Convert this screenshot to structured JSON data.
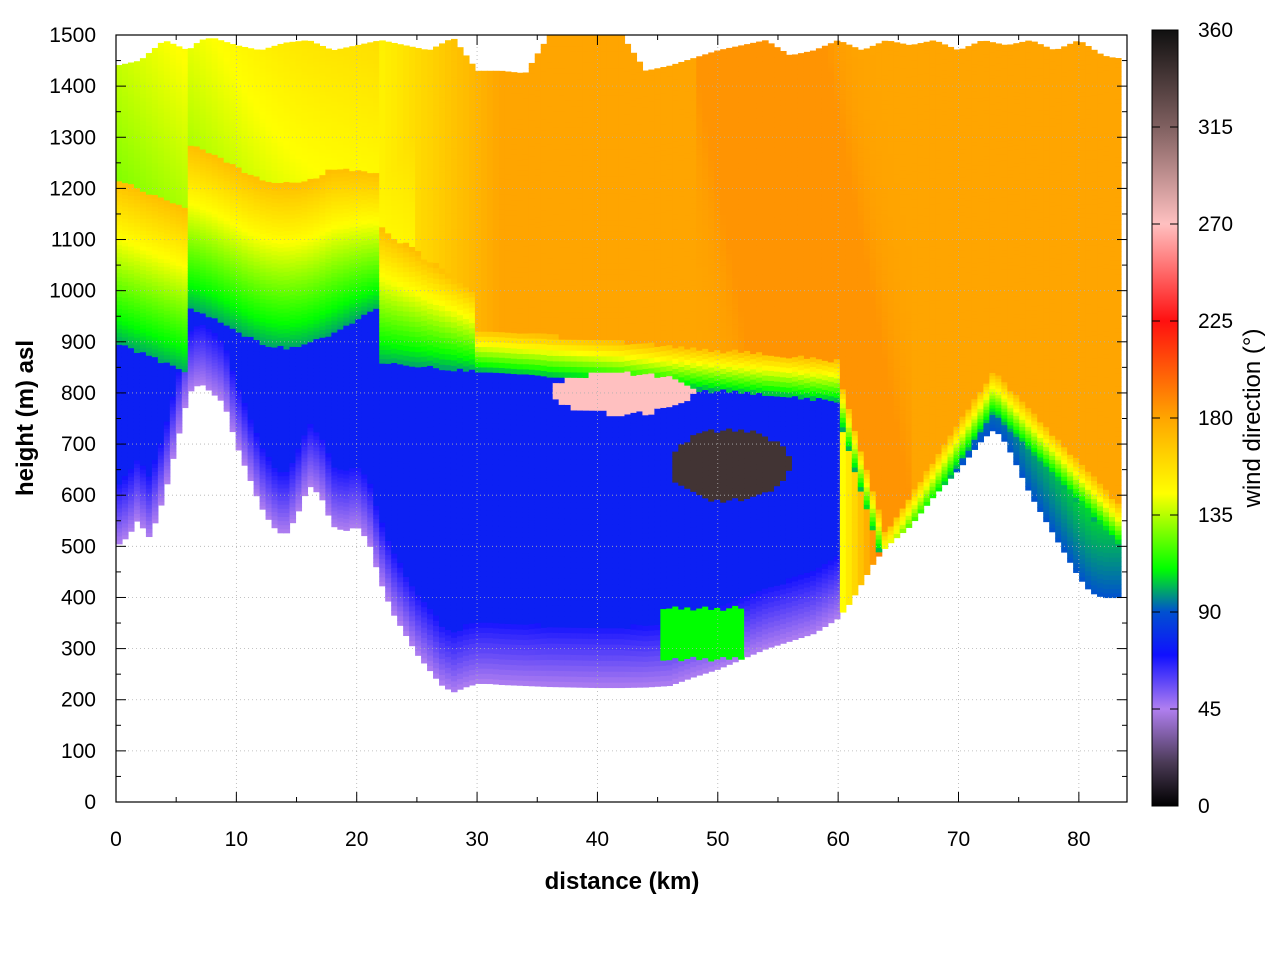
{
  "chart_data": {
    "type": "heatmap",
    "title": "",
    "xlabel": "distance (km)",
    "ylabel": "height (m) asl",
    "colorbar_label": "wind direction (°)",
    "xlim": [
      0,
      84
    ],
    "ylim": [
      0,
      1500
    ],
    "x_ticks": [
      "0",
      "10",
      "20",
      "30",
      "40",
      "50",
      "60",
      "70",
      "80"
    ],
    "y_ticks": [
      "0",
      "100",
      "200",
      "300",
      "400",
      "500",
      "600",
      "700",
      "800",
      "900",
      "1000",
      "1100",
      "1200",
      "1300",
      "1400",
      "1500"
    ],
    "colorbar_ticks": [
      "0",
      "45",
      "90",
      "135",
      "180",
      "225",
      "270",
      "315",
      "360"
    ],
    "colorbar_range": [
      0,
      360
    ],
    "colorbar_stops": [
      {
        "value": 0,
        "color": "#000000"
      },
      {
        "value": 20,
        "color": "#4a3a55"
      },
      {
        "value": 45,
        "color": "#b07ff0"
      },
      {
        "value": 70,
        "color": "#1010ff"
      },
      {
        "value": 90,
        "color": "#0050d0"
      },
      {
        "value": 110,
        "color": "#00ff00"
      },
      {
        "value": 145,
        "color": "#ffff00"
      },
      {
        "value": 180,
        "color": "#ffa500"
      },
      {
        "value": 225,
        "color": "#ff1010"
      },
      {
        "value": 270,
        "color": "#ffc0c0"
      },
      {
        "value": 315,
        "color": "#806060"
      },
      {
        "value": 360,
        "color": "#101010"
      }
    ],
    "terrain_profile": {
      "x": [
        0,
        1,
        2,
        2.5,
        3,
        4,
        5,
        6,
        7,
        8,
        9,
        10,
        11,
        12,
        13,
        14,
        15,
        16,
        17,
        18,
        19,
        20,
        21,
        22,
        23,
        24,
        25,
        26,
        27,
        28,
        29,
        30,
        31,
        32,
        34,
        36,
        38,
        40,
        42,
        44,
        46,
        48,
        50,
        52,
        54,
        56,
        58,
        60,
        61,
        62,
        63,
        64,
        65,
        66,
        68,
        70,
        72,
        73,
        74,
        75,
        76,
        78,
        80,
        81,
        82,
        83
      ],
      "surface_height": [
        500,
        520,
        560,
        510,
        530,
        600,
        700,
        800,
        820,
        800,
        780,
        700,
        640,
        580,
        540,
        520,
        560,
        620,
        600,
        540,
        530,
        540,
        510,
        430,
        370,
        330,
        290,
        260,
        230,
        215,
        225,
        232,
        232,
        230,
        228,
        226,
        225,
        224,
        224,
        225,
        228,
        245,
        260,
        280,
        300,
        315,
        330,
        360,
        390,
        430,
        470,
        500,
        520,
        540,
        600,
        650,
        710,
        730,
        700,
        650,
        600,
        520,
        440,
        410,
        400,
        400
      ]
    },
    "model_top": {
      "x": [
        0,
        2,
        3,
        4,
        5,
        6,
        7,
        8,
        10,
        12,
        14,
        16,
        18,
        20,
        22,
        24,
        26,
        28,
        30,
        32,
        34,
        36,
        38,
        40,
        42,
        44,
        46,
        48,
        50,
        52,
        54,
        56,
        58,
        60,
        62,
        64,
        66,
        68,
        70,
        72,
        74,
        76,
        78,
        80,
        82,
        83
      ],
      "height": [
        1440,
        1450,
        1470,
        1490,
        1480,
        1470,
        1490,
        1495,
        1480,
        1470,
        1485,
        1490,
        1470,
        1480,
        1490,
        1480,
        1470,
        1495,
        1430,
        1430,
        1425,
        1500,
        1500,
        1500,
        1500,
        1430,
        1440,
        1455,
        1470,
        1480,
        1490,
        1460,
        1470,
        1490,
        1470,
        1490,
        1480,
        1490,
        1470,
        1490,
        1480,
        1490,
        1470,
        1490,
        1460,
        1455
      ]
    },
    "field_layers": [
      {
        "direction": 170,
        "description_region": "upper"
      },
      {
        "direction": 110,
        "region": "mid-west"
      },
      {
        "direction": 70,
        "region": "valley"
      },
      {
        "direction": 45,
        "region": "near-surface"
      },
      {
        "direction": 210,
        "region": "jet-east"
      },
      {
        "direction": 340,
        "region": "core"
      }
    ],
    "legend_position": "right",
    "grid": true
  }
}
